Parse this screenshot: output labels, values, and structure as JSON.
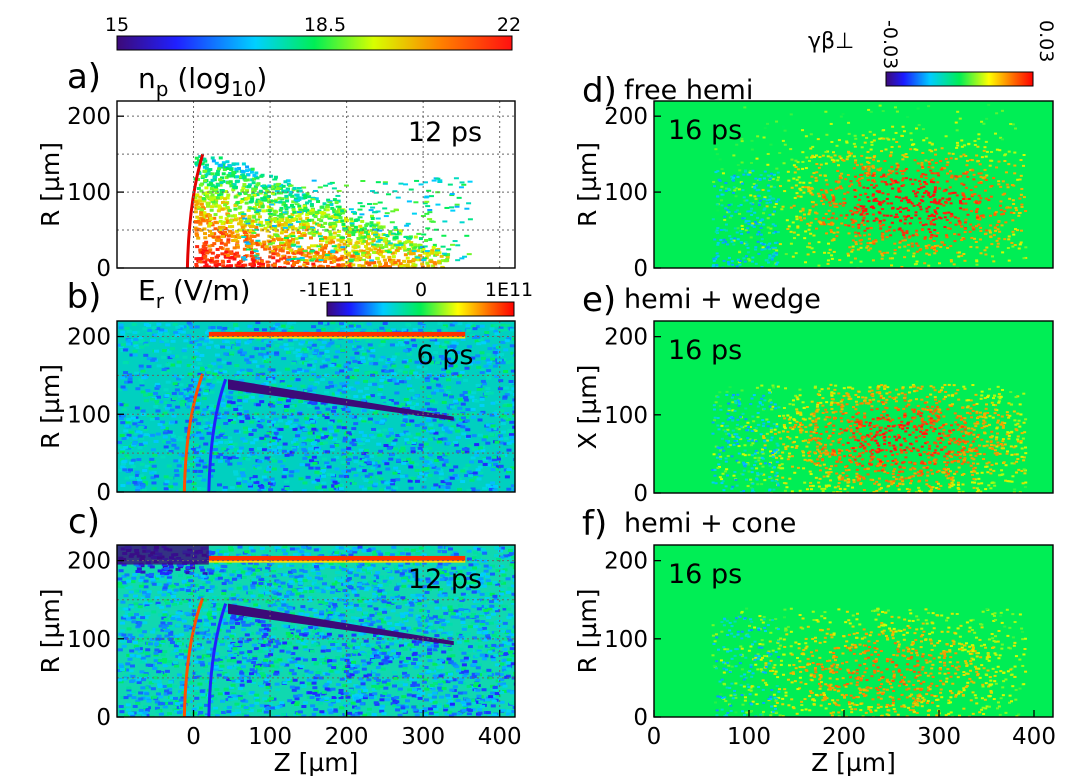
{
  "chart_data": [
    {
      "type": "heatmap",
      "panel": "a)",
      "time": "12 ps",
      "title_main": "n",
      "title_sub": "p",
      "title_rest1": " (log",
      "title_sub2": "10",
      "title_rest2": ")",
      "ylabel": "R [µm]",
      "xlim": [
        -100,
        420
      ],
      "ylim": [
        0,
        220
      ],
      "yticks": [
        "0",
        "100",
        "200"
      ],
      "colorbar": {
        "min": "15",
        "mid": "18.5",
        "max": "22"
      }
    },
    {
      "type": "heatmap",
      "panel": "b)",
      "time": "6 ps",
      "title_main": "E",
      "title_sub": "r",
      "title_rest1": " (V/m)",
      "ylabel": "R [µm]",
      "xlim": [
        -100,
        420
      ],
      "ylim": [
        0,
        220
      ],
      "yticks": [
        "0",
        "100",
        "200"
      ],
      "colorbar": {
        "min": "-1E11",
        "mid": "0",
        "max": "1E11"
      }
    },
    {
      "type": "heatmap",
      "panel": "c)",
      "time": "12 ps",
      "ylabel": "R [µm]",
      "xlabel": "Z [µm]",
      "xlim": [
        -100,
        420
      ],
      "ylim": [
        0,
        220
      ],
      "xticks": [
        "0",
        "100",
        "200",
        "300",
        "400"
      ],
      "yticks": [
        "0",
        "100",
        "200"
      ]
    },
    {
      "type": "heatmap",
      "panel": "d)",
      "case": "free hemi",
      "time": "16 ps",
      "ylabel": "R [µm]",
      "xlim": [
        0,
        420
      ],
      "ylim": [
        0,
        220
      ],
      "yticks": [
        "0",
        "100",
        "200"
      ],
      "colorbar": {
        "label": "γβ⊥",
        "min": "-0.03",
        "max": "0.03"
      }
    },
    {
      "type": "heatmap",
      "panel": "e)",
      "case": "hemi + wedge",
      "time": "16 ps",
      "ylabel": "X [µm]",
      "xlim": [
        0,
        420
      ],
      "ylim": [
        0,
        220
      ],
      "yticks": [
        "0",
        "100",
        "200"
      ]
    },
    {
      "type": "heatmap",
      "panel": "f)",
      "case": "hemi + cone",
      "time": "16 ps",
      "ylabel": "R [µm]",
      "xlabel": "Z [µm]",
      "xlim": [
        0,
        420
      ],
      "ylim": [
        0,
        220
      ],
      "xticks": [
        "0",
        "100",
        "200",
        "300",
        "400"
      ],
      "yticks": [
        "0",
        "100",
        "200"
      ]
    }
  ],
  "colors": {
    "background_green": "#00ee55",
    "jet_dark": "#3c0a78",
    "jet_red": "#ff1010"
  }
}
